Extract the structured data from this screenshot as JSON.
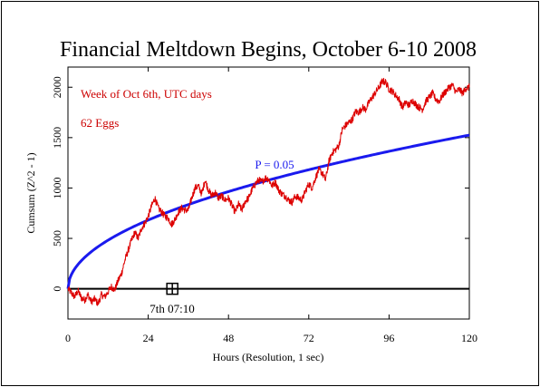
{
  "chart_data": {
    "type": "line",
    "title": "Financial Meltdown Begins, October 6-10 2008",
    "xlabel": "Hours (Resolution, 1 sec)",
    "ylabel": "Cumsum (Z^2 - 1)",
    "xlim": [
      0,
      120
    ],
    "ylim": [
      -300,
      2200
    ],
    "x_ticks": [
      0,
      24,
      48,
      72,
      96,
      120
    ],
    "x_tick_labels": [
      "0",
      "24",
      "48",
      "72",
      "96",
      "120"
    ],
    "y_ticks": [
      0,
      500,
      1000,
      1500,
      2000
    ],
    "y_tick_labels": [
      "0",
      "500",
      "1000",
      "1500",
      "2000"
    ],
    "annotations": {
      "line1": "Week of Oct 6th, UTC days",
      "line2": "62 Eggs",
      "p_label": "P = 0.05",
      "event_label": "7th 07:10"
    },
    "event_marker": {
      "x": 31.2,
      "y": 0
    },
    "colors": {
      "data": "#dd0000",
      "significance": "#1a1aee",
      "baseline": "#000000",
      "annotation": "#cc0000"
    },
    "series": [
      {
        "name": "",
        "color": "#dd0000",
        "x": [
          0,
          1,
          2,
          3,
          4,
          5,
          6,
          7,
          8,
          9,
          10,
          11,
          12,
          13,
          14,
          15,
          16,
          17,
          18,
          19,
          20,
          21,
          22,
          23,
          24,
          25,
          26,
          27,
          28,
          29,
          30,
          31,
          32,
          33,
          34,
          35,
          36,
          37,
          38,
          39,
          40,
          41,
          42,
          43,
          44,
          45,
          46,
          47,
          48,
          49,
          50,
          51,
          52,
          53,
          54,
          55,
          56,
          57,
          58,
          59,
          60,
          61,
          62,
          63,
          64,
          65,
          66,
          67,
          68,
          69,
          70,
          71,
          72,
          73,
          74,
          75,
          76,
          77,
          78,
          79,
          80,
          81,
          82,
          83,
          84,
          85,
          86,
          87,
          88,
          89,
          90,
          91,
          92,
          93,
          94,
          95,
          96,
          97,
          98,
          99,
          100,
          101,
          102,
          103,
          104,
          105,
          106,
          107,
          108,
          109,
          110,
          111,
          112,
          113,
          114,
          115,
          116,
          117,
          118,
          119,
          120
        ],
        "values": [
          0,
          -40,
          -80,
          -20,
          -90,
          -110,
          -60,
          -130,
          -100,
          -150,
          -60,
          -80,
          -30,
          20,
          -10,
          80,
          150,
          280,
          380,
          480,
          560,
          500,
          600,
          650,
          720,
          820,
          900,
          800,
          760,
          720,
          700,
          640,
          690,
          760,
          800,
          780,
          780,
          900,
          1000,
          1020,
          940,
          1080,
          980,
          920,
          960,
          900,
          920,
          880,
          900,
          830,
          760,
          840,
          780,
          870,
          900,
          980,
          1040,
          1080,
          1060,
          1100,
          1090,
          1020,
          1060,
          980,
          940,
          920,
          880,
          860,
          920,
          900,
          880,
          970,
          1040,
          1000,
          1100,
          1180,
          1150,
          1080,
          1260,
          1350,
          1380,
          1420,
          1580,
          1620,
          1650,
          1680,
          1760,
          1750,
          1800,
          1780,
          1850,
          1900,
          1950,
          2000,
          2060,
          2050,
          1980,
          1960,
          1920,
          1880,
          1800,
          1850,
          1820,
          1870,
          1830,
          1800,
          1780,
          1860,
          1900,
          1940,
          1880,
          1860,
          1920,
          1960,
          2000,
          2020,
          1950,
          1980,
          1940,
          1990,
          2000
        ]
      }
    ]
  }
}
